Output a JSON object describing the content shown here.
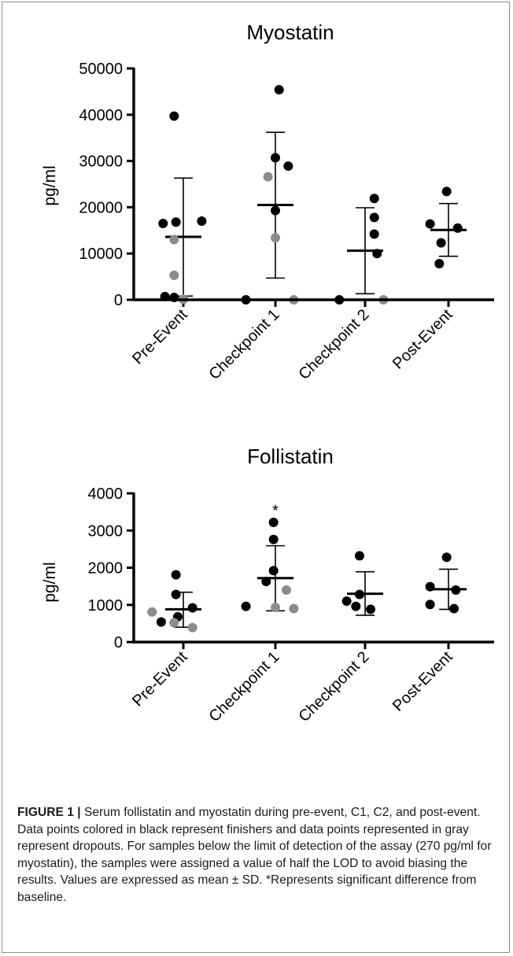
{
  "colors": {
    "finisher": "#000000",
    "dropout": "#8c8c8c",
    "axis": "#000000"
  },
  "chart_data": [
    {
      "type": "scatter",
      "title": "Myostatin",
      "xlabel": "",
      "ylabel": "pg/ml",
      "ylim": [
        0,
        50000
      ],
      "yticks": [
        "0",
        "10000",
        "20000",
        "30000",
        "40000",
        "50000"
      ],
      "categories": [
        "Pre-Event",
        "Checkpoint 1",
        "Checkpoint 2",
        "Post-Event"
      ],
      "grid": false,
      "summary": [
        {
          "category": "Pre-Event",
          "mean": 13600,
          "sd_low": 800,
          "sd_high": 26300
        },
        {
          "category": "Checkpoint 1",
          "mean": 20500,
          "sd_low": 4700,
          "sd_high": 36200
        },
        {
          "category": "Checkpoint 2",
          "mean": 10600,
          "sd_low": 1300,
          "sd_high": 19900
        },
        {
          "category": "Post-Event",
          "mean": 15100,
          "sd_low": 9400,
          "sd_high": 20800
        }
      ],
      "series": [
        {
          "group": "finishers",
          "points": [
            {
              "category": "Pre-Event",
              "y": 39700,
              "offset": -0.1
            },
            {
              "category": "Pre-Event",
              "y": 16500,
              "offset": -0.22
            },
            {
              "category": "Pre-Event",
              "y": 16800,
              "offset": -0.08
            },
            {
              "category": "Pre-Event",
              "y": 17000,
              "offset": 0.2
            },
            {
              "category": "Pre-Event",
              "y": 700,
              "offset": -0.2
            },
            {
              "category": "Pre-Event",
              "y": 500,
              "offset": -0.1
            },
            {
              "category": "Checkpoint 1",
              "y": 45400,
              "offset": 0.04
            },
            {
              "category": "Checkpoint 1",
              "y": 30700,
              "offset": 0.0
            },
            {
              "category": "Checkpoint 1",
              "y": 28900,
              "offset": 0.14
            },
            {
              "category": "Checkpoint 1",
              "y": 19300,
              "offset": 0.0
            },
            {
              "category": "Checkpoint 1",
              "y": 0,
              "offset": -0.32
            },
            {
              "category": "Checkpoint 2",
              "y": 21900,
              "offset": 0.1
            },
            {
              "category": "Checkpoint 2",
              "y": 17800,
              "offset": 0.1
            },
            {
              "category": "Checkpoint 2",
              "y": 14200,
              "offset": 0.1
            },
            {
              "category": "Checkpoint 2",
              "y": 10000,
              "offset": 0.13
            },
            {
              "category": "Checkpoint 2",
              "y": 0,
              "offset": -0.28
            },
            {
              "category": "Post-Event",
              "y": 23400,
              "offset": -0.02
            },
            {
              "category": "Post-Event",
              "y": 16400,
              "offset": -0.2
            },
            {
              "category": "Post-Event",
              "y": 15500,
              "offset": 0.1
            },
            {
              "category": "Post-Event",
              "y": 12300,
              "offset": -0.08
            },
            {
              "category": "Post-Event",
              "y": 7800,
              "offset": -0.1
            }
          ]
        },
        {
          "group": "dropouts",
          "points": [
            {
              "category": "Pre-Event",
              "y": 13000,
              "offset": -0.1
            },
            {
              "category": "Pre-Event",
              "y": 5300,
              "offset": -0.1
            },
            {
              "category": "Pre-Event",
              "y": 100,
              "offset": 0.0
            },
            {
              "category": "Checkpoint 1",
              "y": 26600,
              "offset": -0.08
            },
            {
              "category": "Checkpoint 1",
              "y": 13400,
              "offset": 0.0
            },
            {
              "category": "Checkpoint 1",
              "y": 0,
              "offset": 0.2
            },
            {
              "category": "Checkpoint 2",
              "y": 0,
              "offset": 0.2
            }
          ]
        }
      ],
      "annotations": []
    },
    {
      "type": "scatter",
      "title": "Follistatin",
      "xlabel": "",
      "ylabel": "pg/ml",
      "ylim": [
        0,
        4000
      ],
      "yticks": [
        "0",
        "1000",
        "2000",
        "3000",
        "4000"
      ],
      "categories": [
        "Pre-Event",
        "Checkpoint 1",
        "Checkpoint 2",
        "Post-Event"
      ],
      "grid": false,
      "summary": [
        {
          "category": "Pre-Event",
          "mean": 880,
          "sd_low": 400,
          "sd_high": 1340
        },
        {
          "category": "Checkpoint 1",
          "mean": 1720,
          "sd_low": 840,
          "sd_high": 2590
        },
        {
          "category": "Checkpoint 2",
          "mean": 1300,
          "sd_low": 720,
          "sd_high": 1890
        },
        {
          "category": "Post-Event",
          "mean": 1420,
          "sd_low": 880,
          "sd_high": 1960
        }
      ],
      "series": [
        {
          "group": "finishers",
          "points": [
            {
              "category": "Pre-Event",
              "y": 1810,
              "offset": -0.08
            },
            {
              "category": "Pre-Event",
              "y": 1280,
              "offset": -0.08
            },
            {
              "category": "Pre-Event",
              "y": 920,
              "offset": 0.1
            },
            {
              "category": "Pre-Event",
              "y": 680,
              "offset": -0.06
            },
            {
              "category": "Pre-Event",
              "y": 540,
              "offset": -0.24
            },
            {
              "category": "Checkpoint 1",
              "y": 3220,
              "offset": -0.02
            },
            {
              "category": "Checkpoint 1",
              "y": 2760,
              "offset": -0.02
            },
            {
              "category": "Checkpoint 1",
              "y": 1920,
              "offset": -0.02
            },
            {
              "category": "Checkpoint 1",
              "y": 1630,
              "offset": -0.1
            },
            {
              "category": "Checkpoint 1",
              "y": 960,
              "offset": -0.32
            },
            {
              "category": "Checkpoint 2",
              "y": 2320,
              "offset": -0.06
            },
            {
              "category": "Checkpoint 2",
              "y": 1280,
              "offset": -0.06
            },
            {
              "category": "Checkpoint 2",
              "y": 1100,
              "offset": -0.2
            },
            {
              "category": "Checkpoint 2",
              "y": 960,
              "offset": -0.1
            },
            {
              "category": "Checkpoint 2",
              "y": 880,
              "offset": 0.06
            },
            {
              "category": "Post-Event",
              "y": 2280,
              "offset": -0.02
            },
            {
              "category": "Post-Event",
              "y": 1490,
              "offset": -0.2
            },
            {
              "category": "Post-Event",
              "y": 1400,
              "offset": 0.08
            },
            {
              "category": "Post-Event",
              "y": 1010,
              "offset": -0.2
            },
            {
              "category": "Post-Event",
              "y": 900,
              "offset": 0.06
            }
          ]
        },
        {
          "group": "dropouts",
          "points": [
            {
              "category": "Pre-Event",
              "y": 810,
              "offset": -0.34
            },
            {
              "category": "Pre-Event",
              "y": 520,
              "offset": -0.1
            },
            {
              "category": "Pre-Event",
              "y": 390,
              "offset": 0.1
            },
            {
              "category": "Checkpoint 1",
              "y": 1400,
              "offset": 0.12
            },
            {
              "category": "Checkpoint 1",
              "y": 930,
              "offset": 0.0
            },
            {
              "category": "Checkpoint 1",
              "y": 900,
              "offset": 0.2
            }
          ]
        }
      ],
      "annotations": [
        {
          "category": "Checkpoint 1",
          "y": 3520,
          "text": "*"
        }
      ]
    }
  ],
  "caption": {
    "label": "FIGURE 1 |",
    "text": "Serum follistatin and myostatin during pre-event, C1, C2, and post-event. Data points colored in black represent finishers and data points represented in gray represent dropouts. For samples below the limit of detection of the assay (270 pg/ml for myostatin), the samples were assigned a value of half the LOD to avoid biasing the results. Values are expressed as mean ± SD. *Represents significant difference from baseline."
  }
}
